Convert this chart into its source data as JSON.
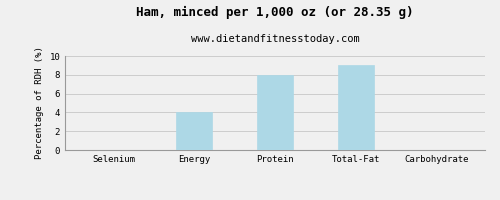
{
  "title": "Ham, minced per 1,000 oz (or 28.35 g)",
  "subtitle": "www.dietandfitnesstoday.com",
  "categories": [
    "Selenium",
    "Energy",
    "Protein",
    "Total-Fat",
    "Carbohydrate"
  ],
  "values": [
    0,
    4,
    8,
    9,
    0
  ],
  "bar_color": "#add8e6",
  "bar_edge_color": "#add8e6",
  "ylabel": "Percentage of RDH (%)",
  "ylim": [
    0,
    10
  ],
  "yticks": [
    0,
    2,
    4,
    6,
    8,
    10
  ],
  "background_color": "#f0f0f0",
  "grid_color": "#cccccc",
  "title_fontsize": 9,
  "subtitle_fontsize": 7.5,
  "ylabel_fontsize": 6.5,
  "tick_fontsize": 6.5,
  "bar_width": 0.45
}
